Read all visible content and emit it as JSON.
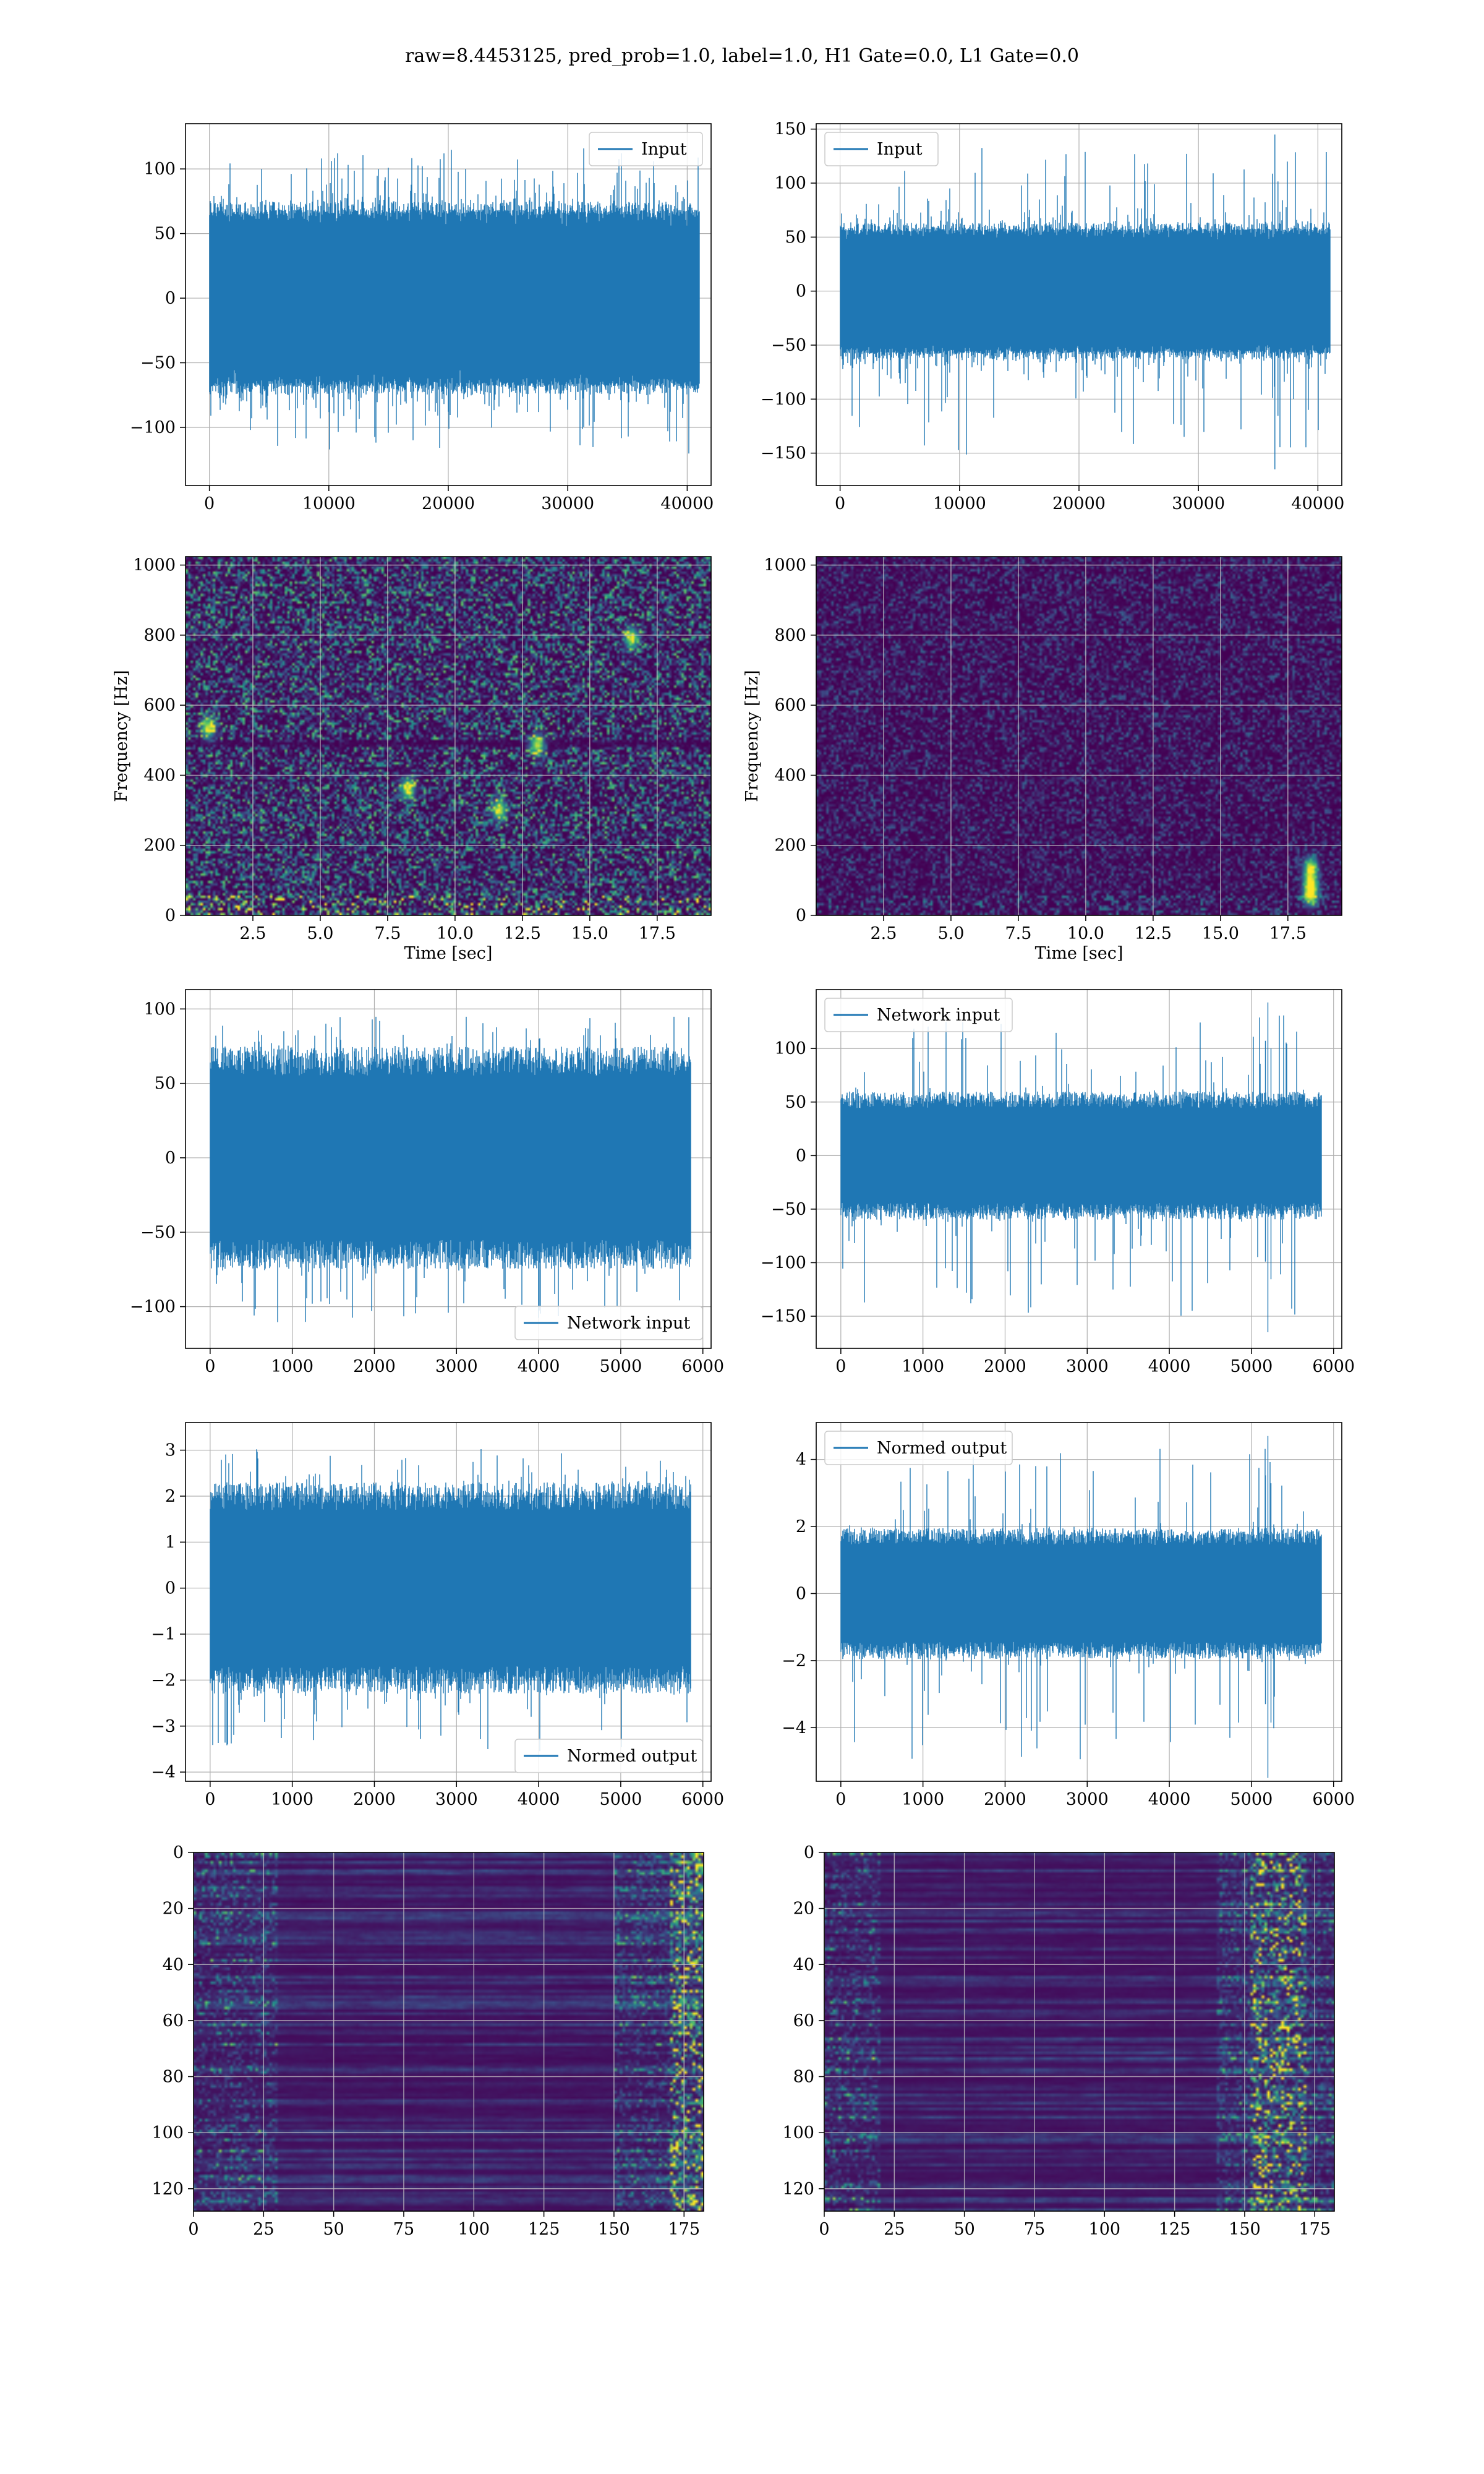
{
  "figure": {
    "title": "raw=8.4453125, pred_prob=1.0, label=1.0, H1 Gate=0.0, L1 Gate=0.0",
    "colors": {
      "line": "#1f77b4",
      "grid": "#b0b0b0",
      "axes": "#000000"
    }
  },
  "chart_data": [
    {
      "id": "input-h1",
      "type": "line",
      "legend": "Input",
      "legend_pos": "upper-right",
      "xlim": [
        -2000,
        42000
      ],
      "ylim": [
        -145,
        135
      ],
      "npts": 41000,
      "xticks": [
        0,
        10000,
        20000,
        30000,
        40000
      ],
      "xtick_labels": [
        "0",
        "10000",
        "20000",
        "30000",
        "40000"
      ],
      "yticks": [
        -100,
        -50,
        0,
        50,
        100
      ],
      "ytick_labels": [
        "−100",
        "−50",
        "0",
        "50",
        "100"
      ],
      "noise": {
        "sigma": 26,
        "clip": 65,
        "min": -131,
        "max": 126
      },
      "series": [
        {
          "name": "Input",
          "x_range": [
            0,
            41000
          ]
        }
      ]
    },
    {
      "id": "input-l1",
      "type": "line",
      "legend": "Input",
      "legend_pos": "upper-left",
      "xlim": [
        -2000,
        42000
      ],
      "ylim": [
        -180,
        155
      ],
      "npts": 41000,
      "xticks": [
        0,
        10000,
        20000,
        30000,
        40000
      ],
      "xtick_labels": [
        "0",
        "10000",
        "20000",
        "30000",
        "40000"
      ],
      "yticks": [
        -150,
        -100,
        -50,
        0,
        50,
        100,
        150
      ],
      "ytick_labels": [
        "−150",
        "−100",
        "−50",
        "0",
        "50",
        "100",
        "150"
      ],
      "noise": {
        "sigma": 22,
        "clip": 55,
        "min": -165,
        "max": 145
      },
      "series": [
        {
          "name": "Input",
          "x_range": [
            0,
            41000
          ]
        }
      ],
      "events": [
        {
          "x": 36400,
          "low": -165,
          "high": 145
        }
      ]
    },
    {
      "id": "spectrogram-h1",
      "type": "heatmap",
      "xlabel": "Time [sec]",
      "ylabel": "Frequency [Hz]",
      "xlim": [
        0.0,
        19.5
      ],
      "ylim": [
        0,
        1024
      ],
      "xticks": [
        2.5,
        5.0,
        7.5,
        10.0,
        12.5,
        15.0,
        17.5
      ],
      "xtick_labels": [
        "2.5",
        "5.0",
        "7.5",
        "10.0",
        "12.5",
        "15.0",
        "17.5"
      ],
      "yticks": [
        0,
        200,
        400,
        600,
        800,
        1000
      ],
      "ytick_labels": [
        "0",
        "200",
        "400",
        "600",
        "800",
        "1000"
      ],
      "brightness": 0.42,
      "hot_spots": [
        [
          16.5,
          795
        ],
        [
          8.2,
          365
        ],
        [
          13.0,
          490
        ],
        [
          0.8,
          540
        ],
        [
          11.6,
          305
        ]
      ],
      "line_bands": [
        490,
        500
      ]
    },
    {
      "id": "spectrogram-l1",
      "type": "heatmap",
      "xlabel": "Time [sec]",
      "ylabel": "Frequency [Hz]",
      "xlim": [
        0.0,
        19.5
      ],
      "ylim": [
        0,
        1024
      ],
      "xticks": [
        2.5,
        5.0,
        7.5,
        10.0,
        12.5,
        15.0,
        17.5
      ],
      "xtick_labels": [
        "2.5",
        "5.0",
        "7.5",
        "10.0",
        "12.5",
        "15.0",
        "17.5"
      ],
      "yticks": [
        0,
        200,
        400,
        600,
        800,
        1000
      ],
      "ytick_labels": [
        "0",
        "200",
        "400",
        "600",
        "800",
        "1000"
      ],
      "brightness": 0.18,
      "hot_spots": [
        [
          18.3,
          60
        ],
        [
          18.3,
          95
        ],
        [
          18.3,
          140
        ]
      ],
      "line_bands": []
    },
    {
      "id": "network-input-h1",
      "type": "line",
      "legend": "Network input",
      "legend_pos": "lower-right",
      "xlim": [
        -300,
        6100
      ],
      "ylim": [
        -128,
        113
      ],
      "npts": 5850,
      "xticks": [
        0,
        1000,
        2000,
        3000,
        4000,
        5000,
        6000
      ],
      "xtick_labels": [
        "0",
        "1000",
        "2000",
        "3000",
        "4000",
        "5000",
        "6000"
      ],
      "yticks": [
        -100,
        -50,
        0,
        50,
        100
      ],
      "ytick_labels": [
        "−100",
        "−50",
        "0",
        "50",
        "100"
      ],
      "noise": {
        "sigma": 27,
        "clip": 65,
        "min": -120,
        "max": 103
      },
      "series": [
        {
          "name": "Network input",
          "x_range": [
            0,
            5850
          ]
        }
      ]
    },
    {
      "id": "network-input-l1",
      "type": "line",
      "legend": "Network input",
      "legend_pos": "upper-left",
      "xlim": [
        -300,
        6100
      ],
      "ylim": [
        -180,
        155
      ],
      "npts": 5850,
      "xticks": [
        0,
        1000,
        2000,
        3000,
        4000,
        5000,
        6000
      ],
      "xtick_labels": [
        "0",
        "1000",
        "2000",
        "3000",
        "4000",
        "5000",
        "6000"
      ],
      "yticks": [
        -150,
        -100,
        -50,
        0,
        50,
        100
      ],
      "ytick_labels": [
        "−150",
        "−100",
        "−50",
        "0",
        "50",
        "100"
      ],
      "noise": {
        "sigma": 20,
        "clip": 52,
        "min": -165,
        "max": 143
      },
      "series": [
        {
          "name": "Network input",
          "x_range": [
            0,
            5850
          ]
        }
      ],
      "events": [
        {
          "x": 5200,
          "low": -165,
          "high": 143
        }
      ]
    },
    {
      "id": "normed-output-h1",
      "type": "line",
      "legend": "Normed output",
      "legend_pos": "lower-right",
      "xlim": [
        -300,
        6100
      ],
      "ylim": [
        -4.2,
        3.6
      ],
      "npts": 5850,
      "xticks": [
        0,
        1000,
        2000,
        3000,
        4000,
        5000,
        6000
      ],
      "xtick_labels": [
        "0",
        "1000",
        "2000",
        "3000",
        "4000",
        "5000",
        "6000"
      ],
      "yticks": [
        -4,
        -3,
        -2,
        -1,
        0,
        1,
        2,
        3
      ],
      "ytick_labels": [
        "−4",
        "−3",
        "−2",
        "−1",
        "0",
        "1",
        "2",
        "3"
      ],
      "noise": {
        "sigma": 0.8,
        "clip": 2.0,
        "min": -3.9,
        "max": 3.3
      },
      "series": [
        {
          "name": "Normed output",
          "x_range": [
            0,
            5850
          ]
        }
      ]
    },
    {
      "id": "normed-output-l1",
      "type": "line",
      "legend": "Normed output",
      "legend_pos": "upper-left",
      "xlim": [
        -300,
        6100
      ],
      "ylim": [
        -5.6,
        5.1
      ],
      "npts": 5850,
      "xticks": [
        0,
        1000,
        2000,
        3000,
        4000,
        5000,
        6000
      ],
      "xtick_labels": [
        "0",
        "1000",
        "2000",
        "3000",
        "4000",
        "5000",
        "6000"
      ],
      "yticks": [
        -4,
        -2,
        0,
        2,
        4
      ],
      "ytick_labels": [
        "−4",
        "−2",
        "0",
        "2",
        "4"
      ],
      "noise": {
        "sigma": 0.65,
        "clip": 1.7,
        "min": -5.5,
        "max": 4.7
      },
      "series": [
        {
          "name": "Normed output",
          "x_range": [
            0,
            5850
          ]
        }
      ],
      "events": [
        {
          "x": 5200,
          "low": -5.5,
          "high": 4.7
        }
      ]
    },
    {
      "id": "feature-map-h1",
      "type": "heatmap",
      "xlim": [
        0,
        182
      ],
      "ylim": [
        128,
        0
      ],
      "xticks": [
        0,
        25,
        50,
        75,
        100,
        125,
        150,
        175
      ],
      "xtick_labels": [
        "0",
        "25",
        "50",
        "75",
        "100",
        "125",
        "150",
        "175"
      ],
      "yticks": [
        0,
        20,
        40,
        60,
        80,
        100,
        120
      ],
      "ytick_labels": [
        "0",
        "20",
        "40",
        "60",
        "80",
        "100",
        "120"
      ],
      "rows": 128,
      "cols": 182,
      "activity": {
        "left_band": [
          0,
          30
        ],
        "right_band": [
          150,
          182
        ],
        "right_peak": [
          170,
          182
        ]
      }
    },
    {
      "id": "feature-map-l1",
      "type": "heatmap",
      "xlim": [
        0,
        182
      ],
      "ylim": [
        128,
        0
      ],
      "xticks": [
        0,
        25,
        50,
        75,
        100,
        125,
        150,
        175
      ],
      "xtick_labels": [
        "0",
        "25",
        "50",
        "75",
        "100",
        "125",
        "150",
        "175"
      ],
      "yticks": [
        0,
        20,
        40,
        60,
        80,
        100,
        120
      ],
      "ytick_labels": [
        "0",
        "20",
        "40",
        "60",
        "80",
        "100",
        "120"
      ],
      "rows": 128,
      "cols": 182,
      "activity": {
        "left_band": [
          0,
          20
        ],
        "right_band": [
          140,
          182
        ],
        "right_peak": [
          152,
          172
        ]
      }
    }
  ]
}
